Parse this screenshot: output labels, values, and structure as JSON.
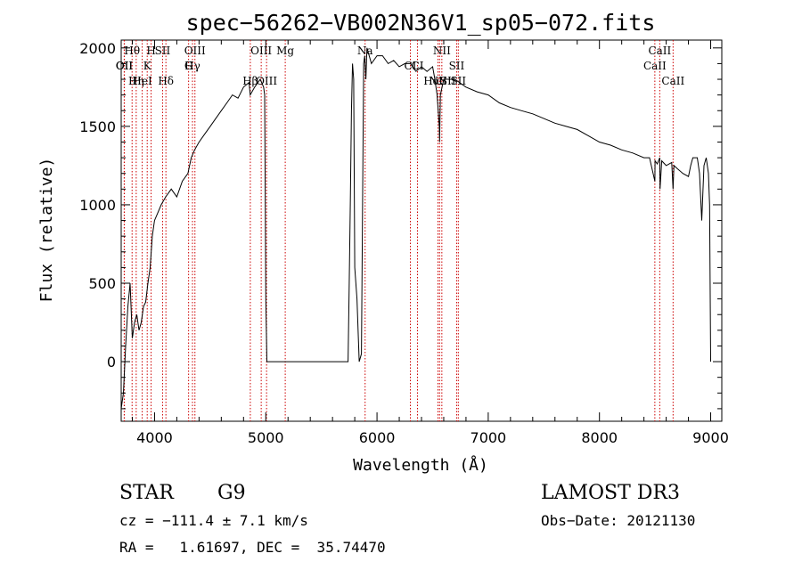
{
  "chart_data": {
    "type": "line",
    "title": "spec−56262−VB002N36V1_sp05−072.fits",
    "xlabel": "Wavelength (Å)",
    "ylabel": "Flux (relative)",
    "xlim": [
      3700,
      9100
    ],
    "ylim": [
      -380,
      2050
    ],
    "x_ticks": [
      4000,
      5000,
      6000,
      7000,
      8000,
      9000
    ],
    "x_tick_labels": [
      "4000",
      "5000",
      "6000",
      "7000",
      "8000",
      "9000"
    ],
    "y_ticks": [
      0,
      500,
      1000,
      1500,
      2000
    ],
    "y_tick_labels": [
      "0",
      "500",
      "1000",
      "1500",
      "2000"
    ],
    "grid": false,
    "series": [
      {
        "x": [
          3700,
          3720,
          3740,
          3760,
          3780,
          3800,
          3820,
          3840,
          3860,
          3880,
          3900,
          3920,
          3940,
          3960,
          3980,
          4000,
          4030,
          4060,
          4100,
          4150,
          4200,
          4250,
          4300,
          4330,
          4360,
          4400,
          4450,
          4500,
          4550,
          4600,
          4650,
          4700,
          4750,
          4800,
          4850,
          4860,
          4900,
          4950,
          4980,
          4990,
          5000,
          5010,
          5050,
          5100,
          5200,
          5300,
          5400,
          5500,
          5600,
          5700,
          5740,
          5750,
          5760,
          5770,
          5780,
          5790,
          5800,
          5820,
          5840,
          5860,
          5880,
          5890,
          5900,
          5910,
          5950,
          6000,
          6050,
          6100,
          6150,
          6200,
          6250,
          6300,
          6350,
          6400,
          6450,
          6500,
          6520,
          6540,
          6560,
          6563,
          6570,
          6600,
          6650,
          6700,
          6800,
          6900,
          7000,
          7100,
          7200,
          7300,
          7400,
          7500,
          7600,
          7700,
          7800,
          7900,
          8000,
          8100,
          8200,
          8300,
          8400,
          8450,
          8498,
          8500,
          8520,
          8542,
          8545,
          8560,
          8600,
          8650,
          8662,
          8670,
          8700,
          8750,
          8800,
          8820,
          8840,
          8860,
          8880,
          8900,
          8920,
          8940,
          8960,
          8980,
          8990,
          9000
        ],
        "values": [
          -300,
          -200,
          100,
          350,
          500,
          150,
          250,
          300,
          200,
          250,
          350,
          380,
          500,
          600,
          800,
          900,
          950,
          1000,
          1050,
          1100,
          1050,
          1150,
          1200,
          1300,
          1350,
          1400,
          1450,
          1500,
          1550,
          1600,
          1650,
          1700,
          1680,
          1750,
          1780,
          1700,
          1750,
          1800,
          1750,
          1700,
          400,
          0,
          0,
          0,
          0,
          0,
          0,
          0,
          0,
          0,
          0,
          500,
          1000,
          1600,
          1900,
          1800,
          600,
          400,
          0,
          50,
          1900,
          1950,
          1800,
          2000,
          1900,
          1950,
          1950,
          1900,
          1920,
          1880,
          1900,
          1900,
          1850,
          1880,
          1850,
          1880,
          1800,
          1700,
          1500,
          1400,
          1700,
          1800,
          1800,
          1800,
          1750,
          1720,
          1700,
          1650,
          1620,
          1600,
          1580,
          1550,
          1520,
          1500,
          1480,
          1440,
          1400,
          1380,
          1350,
          1330,
          1300,
          1300,
          1150,
          1280,
          1260,
          1300,
          1100,
          1280,
          1250,
          1270,
          1100,
          1250,
          1230,
          1200,
          1180,
          1250,
          1300,
          1300,
          1300,
          1200,
          900,
          1250,
          1300,
          1200,
          1000,
          0
        ]
      }
    ],
    "annotations": [
      {
        "label": "Hθ",
        "x": 3798
      },
      {
        "label": "K",
        "x": 3934
      },
      {
        "label": "Hδ",
        "x": 4102
      },
      {
        "label": "OIII",
        "x": 4363
      },
      {
        "label": "OII",
        "x": 3727
      },
      {
        "label": "HeI",
        "x": 3889
      },
      {
        "label": "SII",
        "x": 4072
      },
      {
        "label": "Hγ",
        "x": 4341
      },
      {
        "label": "OIII",
        "x": 5007
      },
      {
        "label": "OIII",
        "x": 4959
      },
      {
        "label": "OII",
        "x": 3729
      },
      {
        "label": "Hη",
        "x": 3835
      },
      {
        "label": "H",
        "x": 3969
      },
      {
        "label": "G",
        "x": 4306
      },
      {
        "label": "Hβ",
        "x": 4861
      },
      {
        "label": "Mg",
        "x": 5175
      },
      {
        "label": "CI",
        "x": 6300
      },
      {
        "label": "HαSII",
        "x": 6563
      },
      {
        "label": "Na",
        "x": 5893
      },
      {
        "label": "CI",
        "x": 6364
      },
      {
        "label": "NII",
        "x": 6548
      },
      {
        "label": "NII",
        "x": 6583
      },
      {
        "label": "SII",
        "x": 6716
      },
      {
        "label": "SII",
        "x": 6731
      },
      {
        "label": "CaII",
        "x": 8542
      },
      {
        "label": "CaII",
        "x": 8498
      },
      {
        "label": "CaII",
        "x": 8662
      }
    ]
  },
  "info": {
    "object_type": "STAR",
    "subclass": "G9",
    "survey": "LAMOST DR3",
    "cz": "cz = −111.4 ± 7.1 km/s",
    "obs_date": "Obs−Date: 20121130",
    "ra_dec": "RA =   1.61697, DEC =  35.74470"
  },
  "style": {
    "line_color": "#000000",
    "marker_line_color": "#cc0000",
    "background": "#ffffff"
  }
}
